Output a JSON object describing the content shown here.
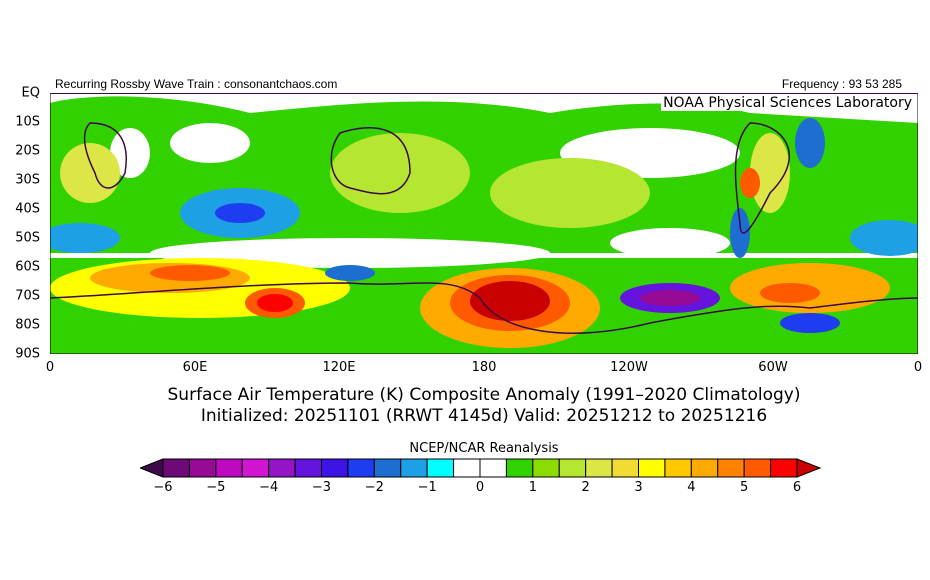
{
  "header": {
    "left": "Recurring Rossby Wave Train : consonantchaos.com",
    "right": "Frequency : 93 53 285",
    "credit": "NOAA Physical Sciences Laboratory"
  },
  "axes": {
    "y_labels": [
      "EQ",
      "10S",
      "20S",
      "30S",
      "40S",
      "50S",
      "60S",
      "70S",
      "80S",
      "90S"
    ],
    "x_labels": [
      "0",
      "60E",
      "120E",
      "180",
      "120W",
      "60W",
      "0"
    ]
  },
  "title": {
    "line1": "Surface Air Temperature (K) Composite Anomaly (1991–2020 Climatology)",
    "line2": "Initialized: 20251101 (RRWT 4145d) Valid: 20251212 to 20251216"
  },
  "colorbar": {
    "title": "NCEP/NCAR Reanalysis",
    "labels": [
      "−6",
      "−5",
      "−4",
      "−3",
      "−2",
      "−1",
      "0",
      "1",
      "2",
      "3",
      "4",
      "5",
      "6"
    ],
    "colors": [
      "#3c0a46",
      "#6e0a78",
      "#960a96",
      "#be0abe",
      "#d214d2",
      "#9614c8",
      "#6414dc",
      "#3c14e6",
      "#1e3cf0",
      "#1e6ed2",
      "#1ea0e6",
      "#00ffff",
      "#ffffff",
      "#ffffff",
      "#32d200",
      "#8cdc00",
      "#b4e632",
      "#dce646",
      "#f0dc32",
      "#ffff00",
      "#ffc800",
      "#ffaa00",
      "#ff8200",
      "#ff5a00",
      "#ff0000",
      "#c80000"
    ]
  }
}
